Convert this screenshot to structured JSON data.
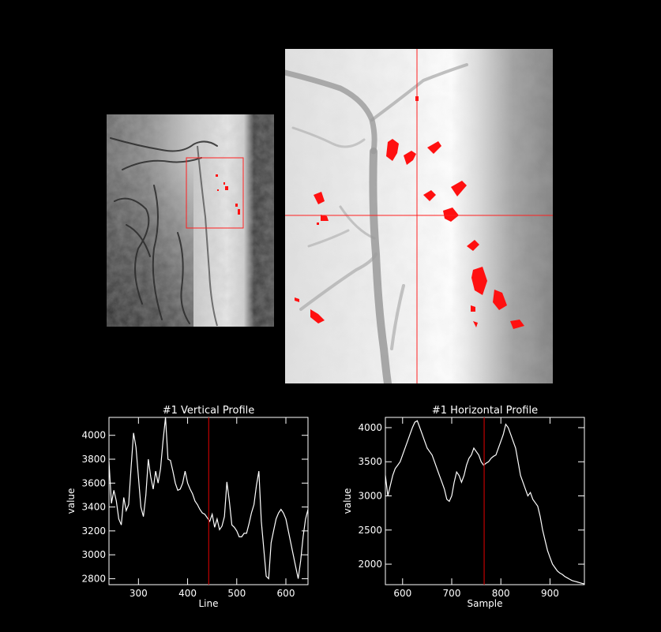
{
  "images": {
    "overview_label": "overview elevation image",
    "zoom_label": "zoomed elevation image"
  },
  "chart_data": [
    {
      "type": "line",
      "title": "#1 Vertical Profile",
      "xlabel": "Line",
      "ylabel": "value",
      "xlim": [
        240,
        645
      ],
      "ylim": [
        2750,
        4150
      ],
      "xticks": [
        300,
        400,
        500,
        600
      ],
      "yticks": [
        2800,
        3000,
        3200,
        3400,
        3600,
        3800,
        4000
      ],
      "cursor_x": 443,
      "colors": {
        "line": "#ffffff",
        "cursor": "#c00000",
        "axes": "#ffffff"
      },
      "series": [
        {
          "x": [
            240,
            245,
            250,
            255,
            260,
            265,
            270,
            275,
            280,
            285,
            290,
            295,
            300,
            305,
            310,
            315,
            320,
            325,
            330,
            335,
            340,
            345,
            350,
            355,
            360,
            365,
            370,
            375,
            380,
            385,
            390,
            395,
            400,
            405,
            410,
            415,
            420,
            425,
            430,
            435,
            440,
            445,
            450,
            455,
            460,
            465,
            470,
            475,
            480,
            485,
            490,
            495,
            500,
            505,
            510,
            515,
            520,
            525,
            530,
            535,
            540,
            545,
            550,
            555,
            560,
            565,
            570,
            575,
            580,
            585,
            590,
            595,
            600,
            605,
            610,
            615,
            620,
            625,
            630,
            635,
            640,
            645
          ],
          "y": [
            3780,
            3430,
            3540,
            3450,
            3300,
            3250,
            3480,
            3370,
            3420,
            3730,
            4020,
            3900,
            3650,
            3400,
            3320,
            3500,
            3800,
            3650,
            3550,
            3700,
            3600,
            3720,
            3950,
            4150,
            3800,
            3790,
            3700,
            3600,
            3540,
            3550,
            3600,
            3700,
            3600,
            3550,
            3510,
            3450,
            3420,
            3380,
            3350,
            3340,
            3310,
            3280,
            3340,
            3230,
            3300,
            3210,
            3240,
            3320,
            3610,
            3450,
            3250,
            3230,
            3200,
            3150,
            3150,
            3180,
            3180,
            3260,
            3350,
            3420,
            3580,
            3700,
            3280,
            3050,
            2820,
            2800,
            3100,
            3200,
            3300,
            3350,
            3380,
            3350,
            3300,
            3200,
            3100,
            3000,
            2900,
            2800,
            2950,
            3150,
            3300,
            3380
          ]
        }
      ]
    },
    {
      "type": "line",
      "title": "#1 Horizontal Profile",
      "xlabel": "Sample",
      "ylabel": "value",
      "xlim": [
        565,
        970
      ],
      "ylim": [
        1700,
        4150
      ],
      "xticks": [
        600,
        700,
        800,
        900
      ],
      "yticks": [
        2000,
        2500,
        3000,
        3500,
        4000
      ],
      "cursor_x": 766,
      "colors": {
        "line": "#ffffff",
        "cursor": "#c00000",
        "axes": "#ffffff"
      },
      "series": [
        {
          "x": [
            565,
            570,
            575,
            580,
            585,
            590,
            595,
            600,
            605,
            610,
            615,
            620,
            625,
            630,
            635,
            640,
            645,
            650,
            655,
            660,
            665,
            670,
            675,
            680,
            685,
            690,
            695,
            700,
            705,
            710,
            715,
            720,
            725,
            730,
            735,
            740,
            745,
            750,
            755,
            760,
            765,
            770,
            775,
            780,
            785,
            790,
            795,
            800,
            805,
            810,
            815,
            820,
            825,
            830,
            835,
            840,
            845,
            850,
            855,
            860,
            865,
            870,
            875,
            880,
            885,
            890,
            895,
            900,
            905,
            910,
            915,
            920,
            925,
            930,
            935,
            940,
            945,
            950,
            955,
            960,
            965,
            970
          ],
          "y": [
            3300,
            3000,
            3150,
            3300,
            3400,
            3450,
            3500,
            3600,
            3700,
            3800,
            3900,
            4000,
            4080,
            4100,
            4000,
            3900,
            3800,
            3700,
            3650,
            3600,
            3500,
            3400,
            3300,
            3200,
            3100,
            2950,
            2920,
            3000,
            3200,
            3350,
            3300,
            3200,
            3300,
            3450,
            3550,
            3600,
            3700,
            3650,
            3600,
            3500,
            3450,
            3480,
            3500,
            3550,
            3580,
            3600,
            3700,
            3800,
            3900,
            4050,
            4000,
            3900,
            3800,
            3700,
            3500,
            3300,
            3200,
            3100,
            3000,
            3050,
            2950,
            2900,
            2850,
            2700,
            2500,
            2350,
            2200,
            2100,
            2000,
            1950,
            1900,
            1870,
            1850,
            1820,
            1800,
            1780,
            1760,
            1750,
            1740,
            1730,
            1720,
            1710
          ]
        }
      ]
    }
  ]
}
